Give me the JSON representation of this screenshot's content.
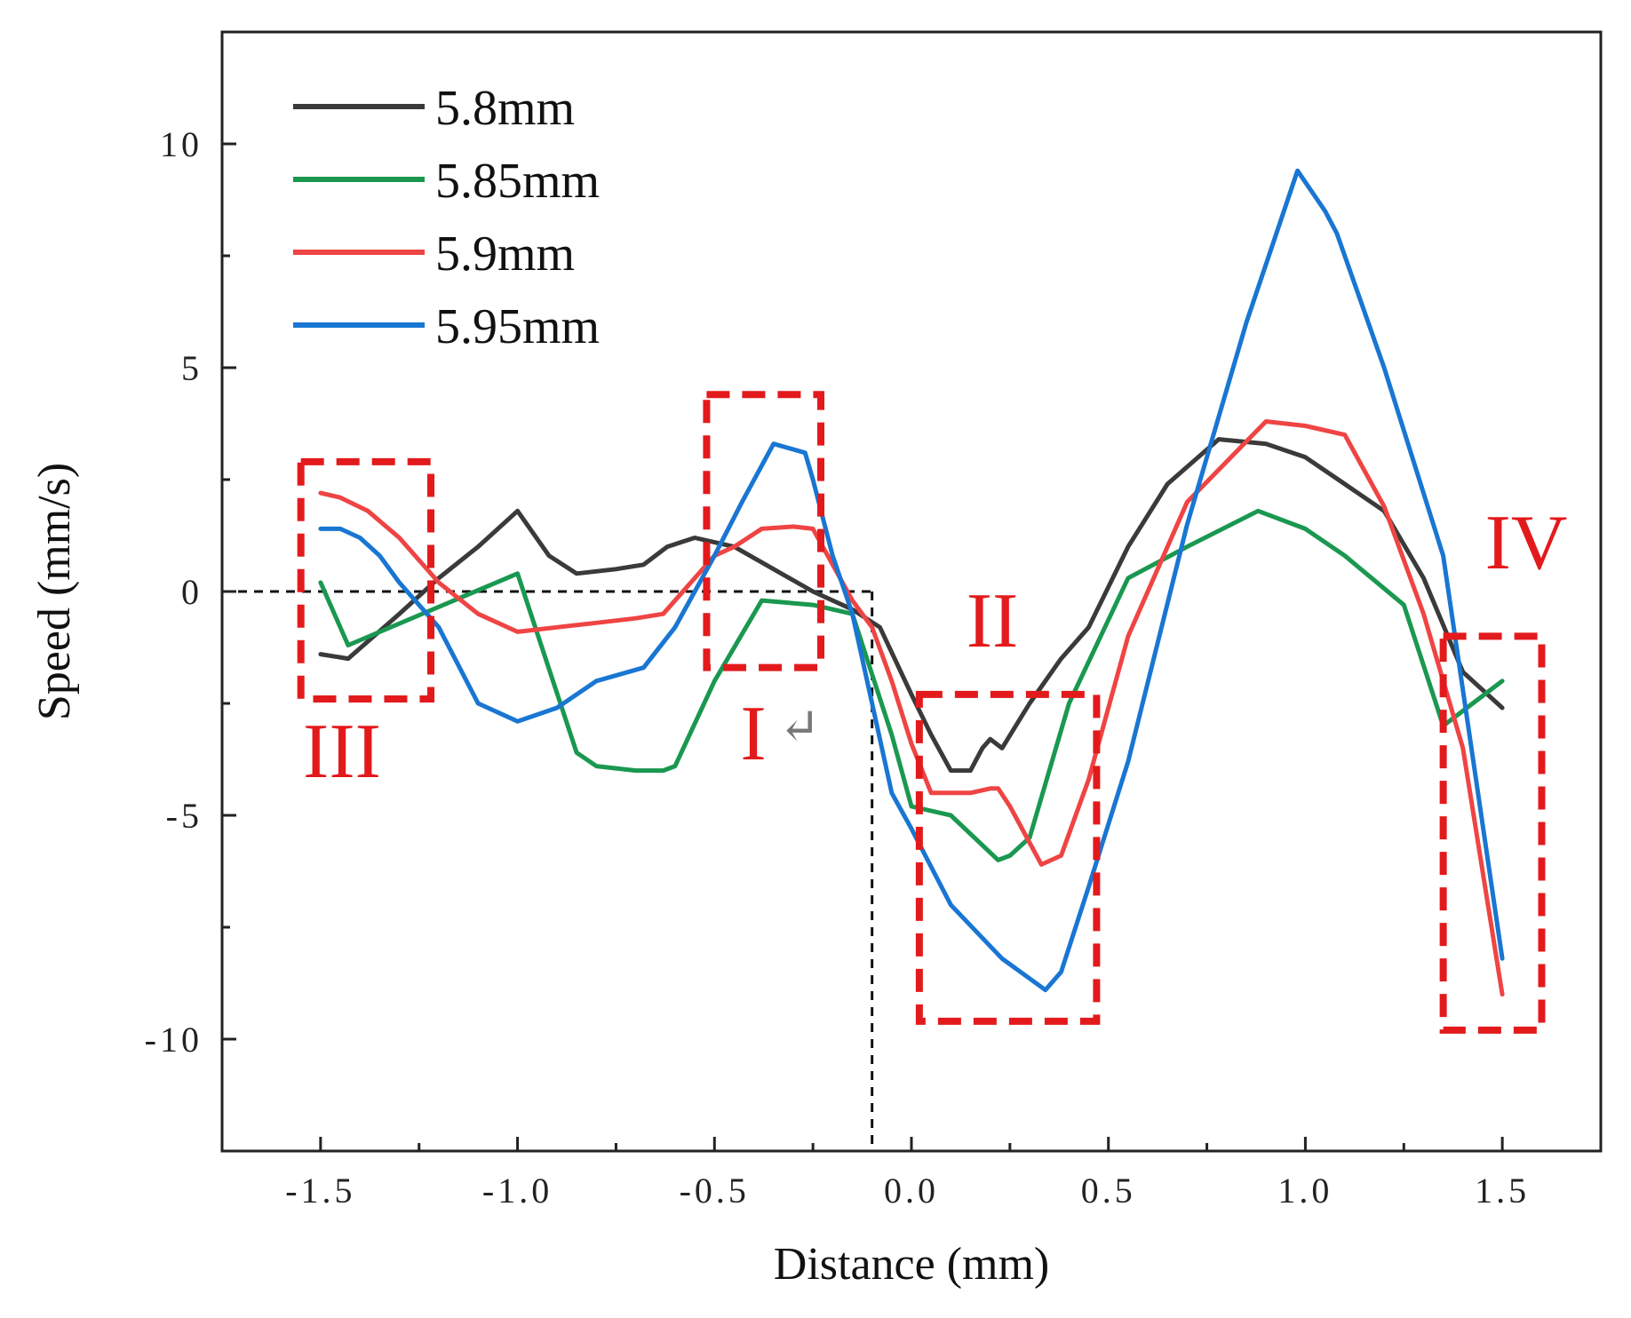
{
  "chart_data": {
    "type": "line",
    "title": "",
    "xlabel": "Distance (mm)",
    "ylabel": "Speed (mm/s)",
    "xlim": [
      -1.75,
      1.75
    ],
    "ylim": [
      -12.5,
      12.5
    ],
    "xticks": [
      -1.5,
      -1.0,
      -0.5,
      0.0,
      0.5,
      1.0,
      1.5
    ],
    "xtick_labels": [
      "-1.5",
      "-1.0",
      "-0.5",
      "0.0",
      "0.5",
      "1.0",
      "1.5"
    ],
    "yticks": [
      -10,
      -5,
      0,
      5,
      10
    ],
    "ytick_labels": [
      "-10",
      "-5",
      "0",
      "5",
      "10"
    ],
    "grid": false,
    "legend_position": "top-left",
    "series": [
      {
        "name": "5.8mm",
        "color": "#3a3a3a",
        "x": [
          -1.5,
          -1.43,
          -1.3,
          -1.2,
          -1.1,
          -1.0,
          -0.92,
          -0.85,
          -0.75,
          -0.68,
          -0.62,
          -0.55,
          -0.5,
          -0.45,
          -0.35,
          -0.25,
          -0.15,
          -0.08,
          0.0,
          0.05,
          0.1,
          0.15,
          0.18,
          0.2,
          0.23,
          0.3,
          0.38,
          0.45,
          0.55,
          0.65,
          0.78,
          0.9,
          1.0,
          1.1,
          1.2,
          1.3,
          1.4,
          1.5
        ],
        "y": [
          -1.4,
          -1.5,
          -0.5,
          0.3,
          1.0,
          1.8,
          0.8,
          0.4,
          0.5,
          0.6,
          1.0,
          1.2,
          1.1,
          1.0,
          0.5,
          0.0,
          -0.4,
          -0.8,
          -2.3,
          -3.2,
          -4.0,
          -4.0,
          -3.5,
          -3.3,
          -3.5,
          -2.5,
          -1.5,
          -0.8,
          1.0,
          2.4,
          3.4,
          3.3,
          3.0,
          2.4,
          1.8,
          0.3,
          -1.8,
          -2.6
        ]
      },
      {
        "name": "5.85mm",
        "color": "#1a9850",
        "x": [
          -1.5,
          -1.43,
          -1.0,
          -0.85,
          -0.8,
          -0.7,
          -0.63,
          -0.6,
          -0.5,
          -0.38,
          -0.25,
          -0.15,
          -0.05,
          0.0,
          0.05,
          0.1,
          0.22,
          0.25,
          0.3,
          0.4,
          0.55,
          0.7,
          0.88,
          1.0,
          1.1,
          1.25,
          1.35,
          1.5
        ],
        "y": [
          0.2,
          -1.2,
          0.4,
          -3.6,
          -3.9,
          -4.0,
          -4.0,
          -3.9,
          -2.0,
          -0.2,
          -0.3,
          -0.5,
          -3.2,
          -4.8,
          -4.9,
          -5.0,
          -6.0,
          -5.9,
          -5.5,
          -2.5,
          0.3,
          1.0,
          1.8,
          1.4,
          0.8,
          -0.3,
          -3.0,
          -2.0
        ]
      },
      {
        "name": "5.9mm",
        "color": "#ef4444",
        "x": [
          -1.5,
          -1.45,
          -1.38,
          -1.3,
          -1.2,
          -1.1,
          -1.0,
          -0.9,
          -0.8,
          -0.7,
          -0.63,
          -0.55,
          -0.5,
          -0.45,
          -0.38,
          -0.3,
          -0.25,
          -0.15,
          -0.1,
          -0.05,
          0.0,
          0.05,
          0.1,
          0.15,
          0.2,
          0.22,
          0.25,
          0.33,
          0.38,
          0.45,
          0.55,
          0.7,
          0.9,
          1.0,
          1.1,
          1.2,
          1.3,
          1.4,
          1.5
        ],
        "y": [
          2.2,
          2.1,
          1.8,
          1.2,
          0.2,
          -0.5,
          -0.9,
          -0.8,
          -0.7,
          -0.6,
          -0.5,
          0.3,
          0.8,
          1.0,
          1.4,
          1.45,
          1.4,
          -0.2,
          -0.8,
          -2.0,
          -3.4,
          -4.5,
          -4.5,
          -4.5,
          -4.4,
          -4.4,
          -4.8,
          -6.1,
          -5.9,
          -4.2,
          -1.0,
          2.0,
          3.8,
          3.7,
          3.5,
          1.9,
          -0.5,
          -3.5,
          -9.0
        ]
      },
      {
        "name": "5.95mm",
        "color": "#1976d2",
        "x": [
          -1.5,
          -1.45,
          -1.4,
          -1.35,
          -1.3,
          -1.2,
          -1.1,
          -1.0,
          -0.9,
          -0.8,
          -0.68,
          -0.6,
          -0.5,
          -0.43,
          -0.35,
          -0.27,
          -0.25,
          -0.2,
          -0.15,
          -0.1,
          -0.05,
          0.0,
          0.1,
          0.23,
          0.34,
          0.38,
          0.45,
          0.55,
          0.7,
          0.85,
          0.98,
          1.05,
          1.08,
          1.2,
          1.35,
          1.5
        ],
        "y": [
          1.4,
          1.4,
          1.2,
          0.8,
          0.2,
          -0.8,
          -2.5,
          -2.9,
          -2.6,
          -2.0,
          -1.7,
          -0.8,
          0.8,
          2.0,
          3.3,
          3.1,
          2.5,
          0.8,
          -0.5,
          -2.5,
          -4.5,
          -5.3,
          -7.0,
          -8.2,
          -8.9,
          -8.5,
          -6.6,
          -3.8,
          1.5,
          6.0,
          9.4,
          8.5,
          8.0,
          5.0,
          0.8,
          -8.2
        ]
      }
    ],
    "annotations": [
      {
        "label": "I",
        "symbol": "↵"
      },
      {
        "label": "II"
      },
      {
        "label": "III"
      },
      {
        "label": "IV"
      }
    ],
    "annotation_boxes": [
      {
        "label": "I",
        "x_range": [
          -0.52,
          -0.23
        ],
        "y_range": [
          -1.7,
          4.4
        ]
      },
      {
        "label": "II",
        "x_range": [
          0.02,
          0.47
        ],
        "y_range": [
          -9.6,
          -2.3
        ]
      },
      {
        "label": "III",
        "x_range": [
          -1.55,
          -1.22
        ],
        "y_range": [
          -2.4,
          2.9
        ]
      },
      {
        "label": "IV",
        "x_range": [
          1.35,
          1.6
        ],
        "y_range": [
          -9.8,
          -1.0
        ]
      }
    ],
    "reference_lines": {
      "horizontal_y": 0,
      "vertical_x": -0.1
    },
    "annotation_color": "#e31a1c",
    "axis_color": "#222222"
  }
}
